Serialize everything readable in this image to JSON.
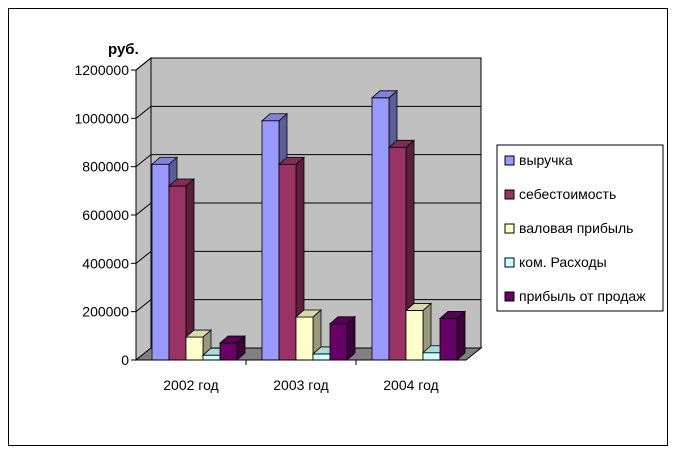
{
  "chart_data": {
    "type": "bar",
    "style": "3d-clustered-column",
    "unit_label": "руб.",
    "categories": [
      "2002 год",
      "2003 год",
      "2004 год"
    ],
    "series": [
      {
        "name": "выручка",
        "color": "#9999ff",
        "values": [
          810000,
          990000,
          1085000
        ]
      },
      {
        "name": "себестоимость",
        "color": "#993366",
        "values": [
          720000,
          810000,
          880000
        ]
      },
      {
        "name": "валовая прибыль",
        "color": "#ffffcc",
        "values": [
          95000,
          178000,
          205000
        ]
      },
      {
        "name": "ком. Расходы",
        "color": "#ccffff",
        "values": [
          20000,
          25000,
          30000
        ]
      },
      {
        "name": "прибыль от продаж",
        "color": "#660066",
        "values": [
          70000,
          150000,
          172000
        ]
      }
    ],
    "y_ticks": [
      "0",
      "200000",
      "400000",
      "600000",
      "800000",
      "1000000",
      "1200000"
    ],
    "ylim": [
      0,
      1200000
    ],
    "wall_color": "#c0c0c0",
    "floor_color": "#808080",
    "legend_position": "right"
  }
}
